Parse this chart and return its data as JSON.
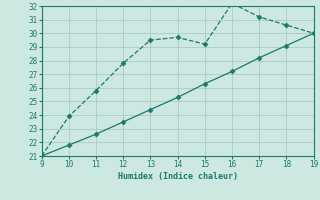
{
  "series1_x": [
    9,
    10,
    11,
    12,
    13,
    14,
    15,
    16,
    17,
    18,
    19
  ],
  "series1_y": [
    21.0,
    23.9,
    25.8,
    27.8,
    29.5,
    29.7,
    29.2,
    32.2,
    31.2,
    30.6,
    30.0
  ],
  "series2_x": [
    9,
    10,
    11,
    12,
    13,
    14,
    15,
    16,
    17,
    18,
    19
  ],
  "series2_y": [
    21.0,
    21.8,
    22.6,
    23.5,
    24.4,
    25.3,
    26.3,
    27.2,
    28.2,
    29.1,
    30.0
  ],
  "line_color": "#1a7a6e",
  "marker": "D",
  "marker_size": 2.5,
  "xlabel": "Humidex (Indice chaleur)",
  "xlim": [
    9,
    19
  ],
  "ylim": [
    21,
    32
  ],
  "xticks": [
    9,
    10,
    11,
    12,
    13,
    14,
    15,
    16,
    17,
    18,
    19
  ],
  "yticks": [
    21,
    22,
    23,
    24,
    25,
    26,
    27,
    28,
    29,
    30,
    31,
    32
  ],
  "background_color": "#cce8e0",
  "grid_color": "#aaccc4",
  "font_color": "#1a7a6e"
}
